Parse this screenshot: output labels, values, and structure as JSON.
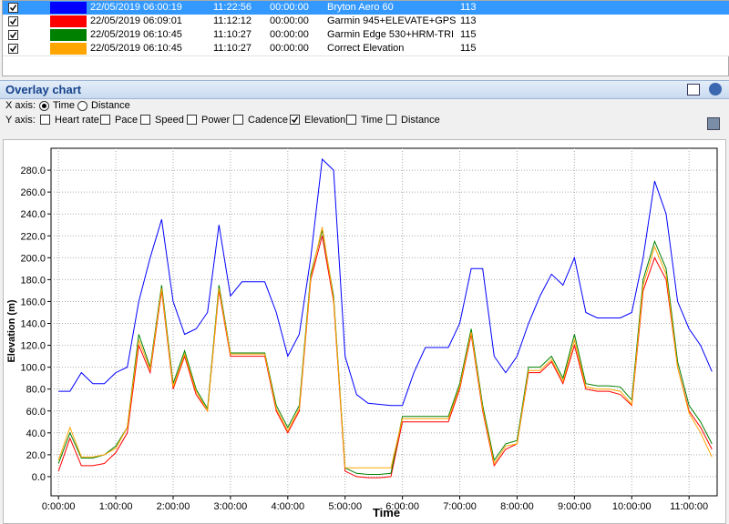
{
  "table": {
    "rows": [
      {
        "checked": true,
        "color": "#0000ff",
        "start": "22/05/2019 06:00:19",
        "duration": "11:22:56",
        "offset": "00:00:00",
        "device": "Bryton Aero 60",
        "count": "113"
      },
      {
        "checked": true,
        "color": "#ff0000",
        "start": "22/05/2019 06:09:01",
        "duration": "11:12:12",
        "offset": "00:00:00",
        "device": "Garmin 945+ELEVATE+GPS",
        "count": "113"
      },
      {
        "checked": true,
        "color": "#008000",
        "start": "22/05/2019 06:10:45",
        "duration": "11:10:27",
        "offset": "00:00:00",
        "device": "Garmin Edge 530+HRM-TRI",
        "count": "115"
      },
      {
        "checked": true,
        "color": "#ffa500",
        "start": "22/05/2019 06:10:45",
        "duration": "11:10:27",
        "offset": "00:00:00",
        "device": "Correct Elevation",
        "count": "115"
      }
    ]
  },
  "panel": {
    "title": "Overlay chart",
    "x_axis_label": "X axis:",
    "x_options": [
      {
        "label": "Time",
        "checked": true
      },
      {
        "label": "Distance",
        "checked": false
      }
    ],
    "y_axis_label": "Y axis:",
    "y_options": [
      {
        "label": "Heart rate",
        "checked": false
      },
      {
        "label": "Pace",
        "checked": false
      },
      {
        "label": "Speed",
        "checked": false
      },
      {
        "label": "Power",
        "checked": false
      },
      {
        "label": "Cadence",
        "checked": false
      },
      {
        "label": "Elevation",
        "checked": true
      },
      {
        "label": "Time",
        "checked": false
      },
      {
        "label": "Distance",
        "checked": false
      }
    ]
  },
  "chart_data": {
    "type": "line",
    "x_label": "Time",
    "y_label": "Elevation (m)",
    "grid": true,
    "x": [
      0,
      0.2,
      0.4,
      0.6,
      0.8,
      1.0,
      1.2,
      1.4,
      1.6,
      1.8,
      2.0,
      2.2,
      2.4,
      2.6,
      2.8,
      3.0,
      3.2,
      3.4,
      3.6,
      3.8,
      4.0,
      4.2,
      4.4,
      4.6,
      4.8,
      5.0,
      5.2,
      5.4,
      5.6,
      5.8,
      6.0,
      6.2,
      6.4,
      6.6,
      6.8,
      7.0,
      7.2,
      7.4,
      7.6,
      7.8,
      8.0,
      8.2,
      8.4,
      8.6,
      8.8,
      9.0,
      9.2,
      9.4,
      9.6,
      9.8,
      10.0,
      10.2,
      10.4,
      10.6,
      10.8,
      11.0,
      11.2,
      11.4
    ],
    "series": [
      {
        "name": "Bryton Aero 60",
        "color": "#0000ff",
        "values": [
          78,
          78,
          95,
          85,
          85,
          95,
          100,
          160,
          200,
          235,
          160,
          130,
          135,
          150,
          230,
          165,
          178,
          178,
          178,
          150,
          110,
          130,
          200,
          290,
          280,
          110,
          75,
          67,
          66,
          65,
          65,
          95,
          118,
          118,
          118,
          140,
          190,
          190,
          110,
          95,
          110,
          140,
          165,
          185,
          175,
          200,
          150,
          145,
          145,
          145,
          150,
          200,
          270,
          240,
          160,
          135,
          120,
          96
        ]
      },
      {
        "name": "Garmin 945+ELEVATE+GPS",
        "color": "#ff0000",
        "values": [
          5,
          35,
          10,
          10,
          12,
          22,
          40,
          120,
          95,
          170,
          80,
          110,
          75,
          60,
          170,
          110,
          110,
          110,
          110,
          60,
          40,
          60,
          180,
          220,
          160,
          5,
          0,
          -1,
          -1,
          0,
          50,
          50,
          50,
          50,
          50,
          80,
          130,
          60,
          10,
          25,
          30,
          95,
          95,
          105,
          85,
          120,
          80,
          78,
          78,
          75,
          65,
          170,
          200,
          180,
          100,
          60,
          45,
          25
        ]
      },
      {
        "name": "Garmin Edge 530+HRM-TRI",
        "color": "#008000",
        "values": [
          12,
          40,
          17,
          17,
          20,
          28,
          45,
          130,
          100,
          175,
          85,
          115,
          80,
          62,
          175,
          113,
          113,
          113,
          113,
          65,
          45,
          65,
          185,
          225,
          165,
          8,
          3,
          2,
          2,
          3,
          55,
          55,
          55,
          55,
          55,
          85,
          135,
          65,
          15,
          30,
          33,
          100,
          100,
          110,
          90,
          130,
          85,
          83,
          83,
          82,
          70,
          180,
          215,
          190,
          105,
          65,
          50,
          30
        ]
      },
      {
        "name": "Correct Elevation",
        "color": "#ffa500",
        "values": [
          15,
          45,
          18,
          18,
          20,
          26,
          45,
          125,
          98,
          172,
          82,
          112,
          78,
          60,
          172,
          112,
          112,
          112,
          112,
          62,
          42,
          62,
          182,
          228,
          162,
          8,
          8,
          8,
          8,
          8,
          53,
          53,
          53,
          53,
          53,
          82,
          132,
          62,
          12,
          28,
          30,
          97,
          97,
          107,
          87,
          125,
          82,
          80,
          80,
          78,
          66,
          175,
          210,
          185,
          100,
          58,
          40,
          18
        ]
      }
    ],
    "xlim": [
      -0.13,
      11.49
    ],
    "xticks": [
      {
        "value": 0,
        "label": "0:00:00"
      },
      {
        "value": 1,
        "label": "1:00:00"
      },
      {
        "value": 2,
        "label": "2:00:00"
      },
      {
        "value": 3,
        "label": "3:00:00"
      },
      {
        "value": 4,
        "label": "4:00:00"
      },
      {
        "value": 5,
        "label": "5:00:00"
      },
      {
        "value": 6,
        "label": "6:00:00"
      },
      {
        "value": 7,
        "label": "7:00:00"
      },
      {
        "value": 8,
        "label": "8:00:00"
      },
      {
        "value": 9,
        "label": "9:00:00"
      },
      {
        "value": 10,
        "label": "10:00:00"
      },
      {
        "value": 11,
        "label": "11:00:00"
      }
    ],
    "ylim": [
      -17.5,
      300
    ],
    "yticks": [
      {
        "value": 0,
        "label": "0.0"
      },
      {
        "value": 20,
        "label": "20.0"
      },
      {
        "value": 40,
        "label": "40.0"
      },
      {
        "value": 60,
        "label": "60.0"
      },
      {
        "value": 80,
        "label": "80.0"
      },
      {
        "value": 100,
        "label": "100.0"
      },
      {
        "value": 120,
        "label": "120.0"
      },
      {
        "value": 140,
        "label": "140.0"
      },
      {
        "value": 160,
        "label": "160.0"
      },
      {
        "value": 180,
        "label": "180.0"
      },
      {
        "value": 200,
        "label": "200.0"
      },
      {
        "value": 220,
        "label": "220.0"
      },
      {
        "value": 240,
        "label": "240.0"
      },
      {
        "value": 260,
        "label": "260.0"
      },
      {
        "value": 280,
        "label": "280.0"
      }
    ]
  }
}
